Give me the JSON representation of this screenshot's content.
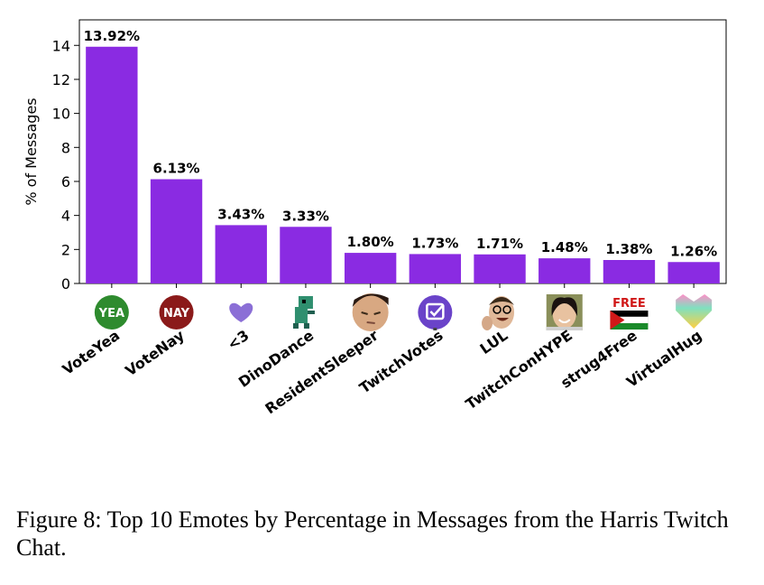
{
  "chart_data": {
    "type": "bar",
    "ylabel": "% of Messages",
    "ylim": [
      0,
      15.5
    ],
    "yticks": [
      0,
      2,
      4,
      6,
      8,
      10,
      12,
      14
    ],
    "bar_color": "#8a2be2",
    "grid": false,
    "categories": [
      "VoteYea",
      "VoteNay",
      "<3",
      "DinoDance",
      "ResidentSleeper",
      "TwitchVotes",
      "LUL",
      "TwitchConHYPE",
      "strug4Free",
      "VirtualHug"
    ],
    "values": [
      13.92,
      6.13,
      3.43,
      3.33,
      1.8,
      1.73,
      1.71,
      1.48,
      1.38,
      1.26
    ],
    "data_labels": [
      "13.92%",
      "6.13%",
      "3.43%",
      "3.33%",
      "1.80%",
      "1.73%",
      "1.71%",
      "1.48%",
      "1.38%",
      "1.26%"
    ],
    "emote_icons": [
      "vote-yea-icon",
      "vote-nay-icon",
      "purple-heart-icon",
      "dino-dance-icon",
      "resident-sleeper-icon",
      "twitch-votes-icon",
      "lul-icon",
      "twitchcon-hype-icon",
      "strug4free-icon",
      "virtual-hug-icon"
    ],
    "icon_text": {
      "yea": "YEA",
      "nay": "NAY",
      "free": "FREE"
    }
  },
  "caption": "Figure 8: Top 10 Emotes by Percentage in Messages from the Harris Twitch Chat."
}
